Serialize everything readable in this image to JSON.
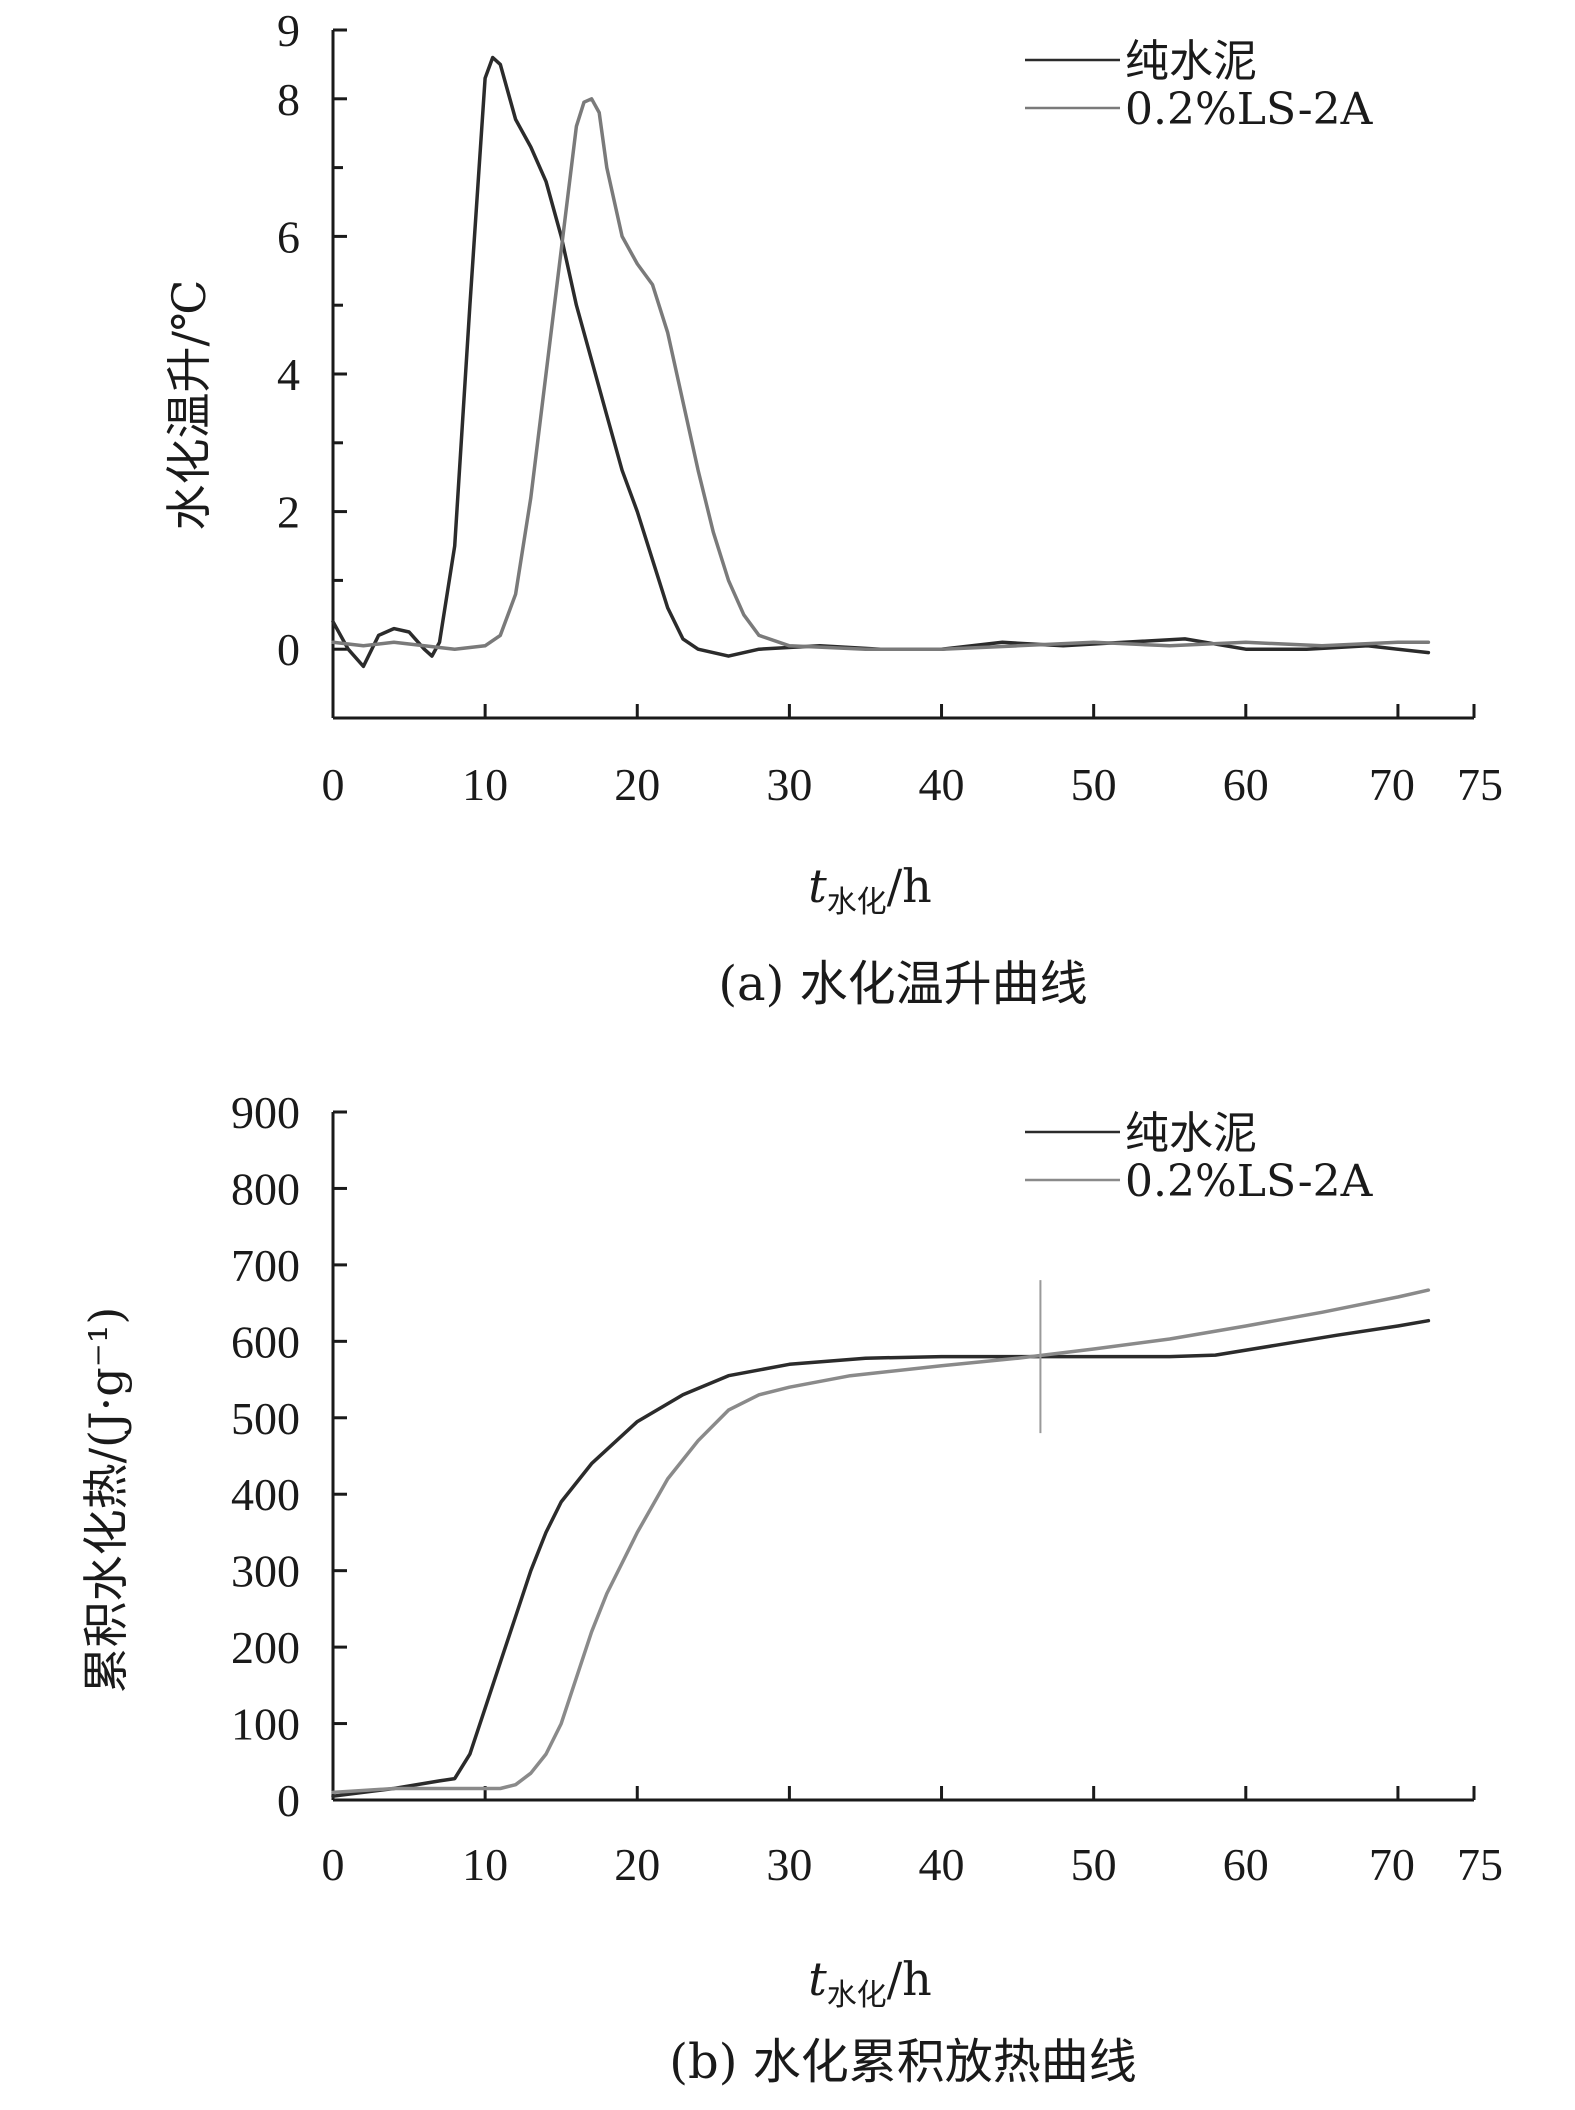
{
  "chart_data": [
    {
      "type": "line",
      "panel": "a",
      "caption": "(a) 水化温升曲线",
      "xlabel_var": "t",
      "xlabel_sub": "水化",
      "xlabel_unit": "/h",
      "ylabel": "水化温升/℃",
      "xlim": [
        0,
        75
      ],
      "ylim": [
        -1,
        9
      ],
      "x_ticks": [
        0,
        10,
        20,
        30,
        40,
        50,
        60,
        70,
        75
      ],
      "y_tick_labels": [
        0,
        2,
        4,
        6,
        8,
        9
      ],
      "y_minor_ticks": [
        1,
        3,
        5,
        7
      ],
      "legend": [
        "纯水泥",
        "0.2%LS-2A"
      ],
      "legend_position": "top-right",
      "grid": false,
      "series": [
        {
          "name": "纯水泥",
          "color": "#2b2b2b",
          "points": [
            [
              0,
              0.4
            ],
            [
              1,
              0.0
            ],
            [
              2,
              -0.25
            ],
            [
              3,
              0.2
            ],
            [
              4,
              0.3
            ],
            [
              5,
              0.25
            ],
            [
              6,
              0.0
            ],
            [
              6.5,
              -0.1
            ],
            [
              7,
              0.1
            ],
            [
              8,
              1.5
            ],
            [
              9,
              5.0
            ],
            [
              10,
              8.3
            ],
            [
              10.5,
              8.6
            ],
            [
              11,
              8.5
            ],
            [
              12,
              7.7
            ],
            [
              13,
              7.3
            ],
            [
              14,
              6.8
            ],
            [
              15,
              6.0
            ],
            [
              16,
              5.0
            ],
            [
              17,
              4.2
            ],
            [
              18,
              3.4
            ],
            [
              19,
              2.6
            ],
            [
              20,
              2.0
            ],
            [
              21,
              1.3
            ],
            [
              22,
              0.6
            ],
            [
              23,
              0.15
            ],
            [
              24,
              0.0
            ],
            [
              26,
              -0.1
            ],
            [
              28,
              0.0
            ],
            [
              32,
              0.05
            ],
            [
              36,
              0.0
            ],
            [
              40,
              0.0
            ],
            [
              44,
              0.1
            ],
            [
              48,
              0.05
            ],
            [
              52,
              0.1
            ],
            [
              56,
              0.15
            ],
            [
              60,
              0.0
            ],
            [
              64,
              0.0
            ],
            [
              68,
              0.05
            ],
            [
              72,
              -0.05
            ]
          ]
        },
        {
          "name": "0.2%LS-2A",
          "color": "#7a7a7a",
          "points": [
            [
              0,
              0.1
            ],
            [
              2,
              0.05
            ],
            [
              4,
              0.1
            ],
            [
              6,
              0.05
            ],
            [
              8,
              0.0
            ],
            [
              10,
              0.05
            ],
            [
              11,
              0.2
            ],
            [
              12,
              0.8
            ],
            [
              13,
              2.2
            ],
            [
              14,
              4.0
            ],
            [
              15,
              5.8
            ],
            [
              16,
              7.6
            ],
            [
              16.5,
              7.95
            ],
            [
              17,
              8.0
            ],
            [
              17.5,
              7.8
            ],
            [
              18,
              7.0
            ],
            [
              19,
              6.0
            ],
            [
              20,
              5.6
            ],
            [
              21,
              5.3
            ],
            [
              22,
              4.6
            ],
            [
              23,
              3.6
            ],
            [
              24,
              2.6
            ],
            [
              25,
              1.7
            ],
            [
              26,
              1.0
            ],
            [
              27,
              0.5
            ],
            [
              28,
              0.2
            ],
            [
              30,
              0.05
            ],
            [
              35,
              0.0
            ],
            [
              40,
              0.0
            ],
            [
              45,
              0.05
            ],
            [
              50,
              0.1
            ],
            [
              55,
              0.05
            ],
            [
              60,
              0.1
            ],
            [
              65,
              0.05
            ],
            [
              70,
              0.1
            ],
            [
              72,
              0.1
            ]
          ]
        }
      ]
    },
    {
      "type": "line",
      "panel": "b",
      "caption": "(b) 水化累积放热曲线",
      "xlabel_var": "t",
      "xlabel_sub": "水化",
      "xlabel_unit": "/h",
      "ylabel": "累积水化热/(J·g⁻¹)",
      "xlim": [
        0,
        75
      ],
      "ylim": [
        0,
        900
      ],
      "x_ticks": [
        0,
        10,
        20,
        30,
        40,
        50,
        60,
        70,
        75
      ],
      "y_tick_labels": [
        0,
        100,
        200,
        300,
        400,
        500,
        600,
        700,
        800,
        900
      ],
      "legend": [
        "纯水泥",
        "0.2%LS-2A"
      ],
      "legend_position": "top-right",
      "grid": false,
      "marker_line_x": 46.5,
      "marker_line_range": [
        480,
        680
      ],
      "series": [
        {
          "name": "纯水泥",
          "color": "#2b2b2b",
          "points": [
            [
              0,
              5
            ],
            [
              4,
              15
            ],
            [
              7,
              25
            ],
            [
              8,
              28
            ],
            [
              9,
              60
            ],
            [
              10,
              120
            ],
            [
              11,
              180
            ],
            [
              12,
              240
            ],
            [
              13,
              300
            ],
            [
              14,
              350
            ],
            [
              15,
              390
            ],
            [
              17,
              440
            ],
            [
              20,
              495
            ],
            [
              23,
              530
            ],
            [
              26,
              555
            ],
            [
              30,
              570
            ],
            [
              35,
              578
            ],
            [
              40,
              580
            ],
            [
              46,
              580
            ],
            [
              50,
              580
            ],
            [
              55,
              580
            ],
            [
              58,
              582
            ],
            [
              62,
              595
            ],
            [
              66,
              608
            ],
            [
              70,
              620
            ],
            [
              72,
              627
            ]
          ]
        },
        {
          "name": "0.2%LS-2A",
          "color": "#8a8a8a",
          "points": [
            [
              0,
              10
            ],
            [
              4,
              15
            ],
            [
              8,
              15
            ],
            [
              11,
              15
            ],
            [
              12,
              20
            ],
            [
              13,
              35
            ],
            [
              14,
              60
            ],
            [
              15,
              100
            ],
            [
              16,
              160
            ],
            [
              17,
              220
            ],
            [
              18,
              270
            ],
            [
              19,
              310
            ],
            [
              20,
              350
            ],
            [
              22,
              420
            ],
            [
              24,
              470
            ],
            [
              26,
              510
            ],
            [
              28,
              530
            ],
            [
              30,
              540
            ],
            [
              34,
              555
            ],
            [
              40,
              568
            ],
            [
              45,
              578
            ],
            [
              50,
              590
            ],
            [
              55,
              603
            ],
            [
              60,
              620
            ],
            [
              65,
              638
            ],
            [
              70,
              658
            ],
            [
              72,
              667
            ]
          ]
        }
      ]
    }
  ]
}
